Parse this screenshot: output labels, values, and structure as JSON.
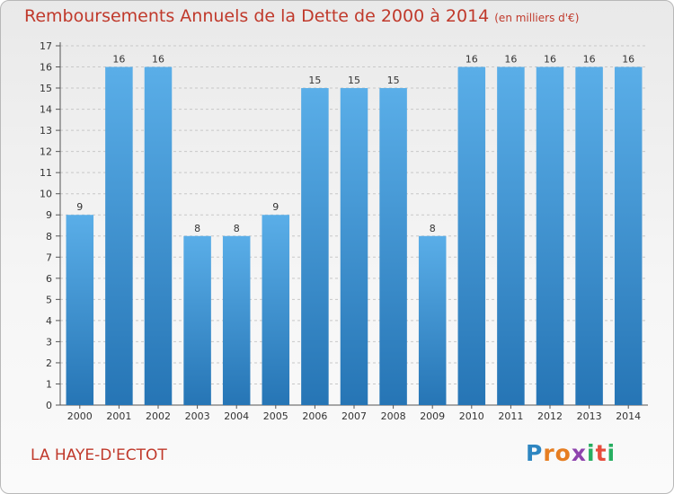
{
  "header": {
    "title": "Remboursements Annuels de la Dette de 2000 à 2014",
    "unit": "(en milliers d'€)"
  },
  "footer": {
    "commune": "LA HAYE-D'ECTOT",
    "brand": [
      "P",
      "r",
      "o",
      "x",
      "i",
      "t",
      "i"
    ]
  },
  "colors": {
    "title": "#c0392b",
    "bar_top": "#5aaee8",
    "bar_bottom": "#2675b5",
    "grid": "#c8c8c8",
    "axis": "#555555",
    "brand": [
      "#2e86c1",
      "#e67e22",
      "#e67e22",
      "#8e44ad",
      "#27ae60",
      "#e74c3c",
      "#27ae60"
    ]
  },
  "chart_data": {
    "type": "bar",
    "title": "Remboursements Annuels de la Dette de 2000 à 2014",
    "xlabel": "",
    "ylabel": "en milliers d'€",
    "categories": [
      "2000",
      "2001",
      "2002",
      "2003",
      "2004",
      "2005",
      "2006",
      "2007",
      "2008",
      "2009",
      "2010",
      "2011",
      "2012",
      "2013",
      "2014"
    ],
    "values": [
      9,
      16,
      16,
      8,
      8,
      9,
      15,
      15,
      15,
      8,
      16,
      16,
      16,
      16,
      16
    ],
    "y_ticks": [
      "0",
      "1",
      "2",
      "3",
      "4",
      "5",
      "6",
      "7",
      "8",
      "9",
      "10",
      "11",
      "12",
      "13",
      "14",
      "15",
      "16",
      "17"
    ],
    "ylim": [
      0,
      17
    ],
    "grid": true
  }
}
